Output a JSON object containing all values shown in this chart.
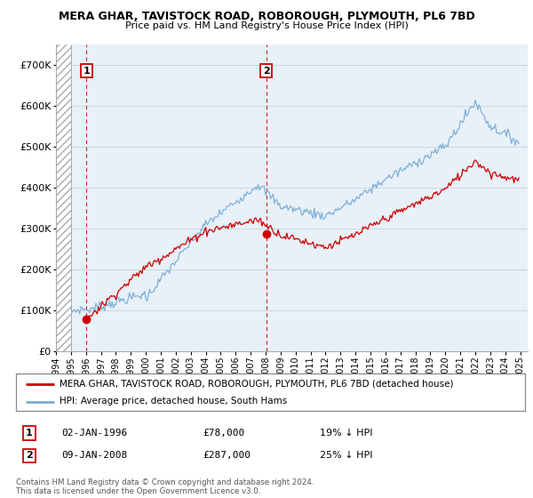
{
  "title": "MERA GHAR, TAVISTOCK ROAD, ROBOROUGH, PLYMOUTH, PL6 7BD",
  "subtitle": "Price paid vs. HM Land Registry's House Price Index (HPI)",
  "ylim": [
    0,
    750000
  ],
  "yticks": [
    0,
    100000,
    200000,
    300000,
    400000,
    500000,
    600000,
    700000
  ],
  "xlim_start": 1994.0,
  "xlim_end": 2025.5,
  "xticks": [
    1994,
    1995,
    1996,
    1997,
    1998,
    1999,
    2000,
    2001,
    2002,
    2003,
    2004,
    2005,
    2006,
    2007,
    2008,
    2009,
    2010,
    2011,
    2012,
    2013,
    2014,
    2015,
    2016,
    2017,
    2018,
    2019,
    2020,
    2021,
    2022,
    2023,
    2024,
    2025
  ],
  "purchase1_x": 1996.04,
  "purchase1_y": 78000,
  "purchase1_label": "1",
  "purchase1_date": "02-JAN-1996",
  "purchase1_price": "£78,000",
  "purchase1_hpi": "19% ↓ HPI",
  "purchase2_x": 2008.04,
  "purchase2_y": 287000,
  "purchase2_label": "2",
  "purchase2_date": "09-JAN-2008",
  "purchase2_price": "£287,000",
  "purchase2_hpi": "25% ↓ HPI",
  "property_line_color": "#cc0000",
  "hpi_line_color": "#7dadd4",
  "legend_property": "MERA GHAR, TAVISTOCK ROAD, ROBOROUGH, PLYMOUTH, PL6 7BD (detached house)",
  "legend_hpi": "HPI: Average price, detached house, South Hams",
  "footnote": "Contains HM Land Registry data © Crown copyright and database right 2024.\nThis data is licensed under the Open Government Licence v3.0.",
  "background_plot_color": "#e8f0f8",
  "grid_color": "#c8d4e0"
}
